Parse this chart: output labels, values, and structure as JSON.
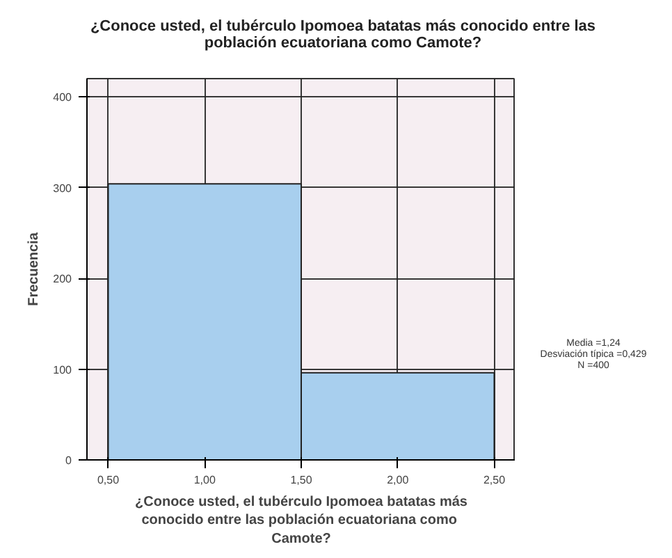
{
  "chart_data": {
    "type": "histogram",
    "title": "¿Conoce usted, el tubérculo Ipomoea batatas más conocido  entre las\npoblación ecuatoriana como  Camote?",
    "xlabel": "¿Conoce usted, el tubérculo Ipomoea batatas más\nconocido  entre las población ecuatoriana como\nCamote?",
    "ylabel": "Frecuencia",
    "bins": [
      0.5,
      1.5,
      2.5
    ],
    "values": [
      304,
      96
    ],
    "color": "#a8cfee",
    "xlim": [
      0.39,
      2.61
    ],
    "ylim": [
      0,
      420
    ],
    "xticks": [
      {
        "value": 0.5,
        "label": "0,50"
      },
      {
        "value": 1.0,
        "label": "1,00"
      },
      {
        "value": 1.5,
        "label": "1,50"
      },
      {
        "value": 2.0,
        "label": "2,00"
      },
      {
        "value": 2.5,
        "label": "2,50"
      }
    ],
    "yticks": [
      0,
      100,
      200,
      300,
      400
    ],
    "grid": true,
    "annotations": [
      "Media =1,24",
      "Desviación típica =0,429",
      "N =400"
    ]
  }
}
